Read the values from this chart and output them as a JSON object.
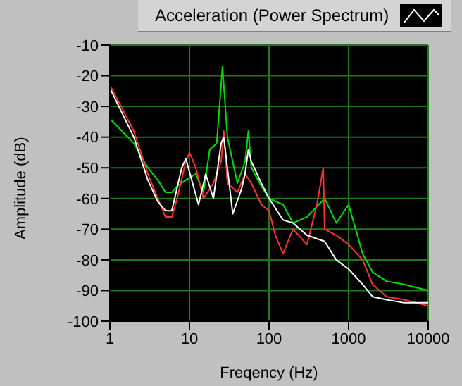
{
  "chart_data": {
    "type": "line",
    "title": "Acceleration (Power Spectrum)",
    "xlabel": "Freqency (Hz)",
    "ylabel": "Amplitude (dB)",
    "log": "x",
    "grid": true,
    "marker": "none",
    "xlim": [
      1,
      10000
    ],
    "xticks": [
      1,
      10,
      100,
      1000,
      10000
    ],
    "ylim": [
      -100,
      -10
    ],
    "yticks": [
      -100,
      -90,
      -80,
      -70,
      -60,
      -50,
      -40,
      -30,
      -20,
      -10
    ],
    "series": [
      {
        "color": "#00e000",
        "x": [
          1,
          2,
          3,
          4,
          5,
          6,
          7,
          9,
          12,
          15,
          18,
          22,
          26,
          30,
          40,
          50,
          55,
          60,
          80,
          100,
          150,
          200,
          300,
          500,
          700,
          1000,
          1500,
          2000,
          3000,
          5000,
          10000
        ],
        "values": [
          -34,
          -42,
          -50,
          -54,
          -58,
          -58,
          -56,
          -54,
          -52,
          -58,
          -44,
          -42,
          -17,
          -40,
          -55,
          -48,
          -38,
          -50,
          -56,
          -60,
          -62,
          -68,
          -66,
          -60,
          -68,
          -62,
          -78,
          -84,
          -87,
          -88,
          -90
        ]
      },
      {
        "color": "#ff3030",
        "x": [
          1,
          2,
          3,
          4,
          5,
          6,
          7,
          9,
          10,
          12,
          15,
          20,
          25,
          27,
          30,
          40,
          50,
          60,
          80,
          100,
          120,
          150,
          200,
          300,
          400,
          480,
          500,
          700,
          1000,
          1500,
          2000,
          3000,
          5000,
          10000
        ],
        "values": [
          -23,
          -38,
          -52,
          -60,
          -66,
          -66,
          -60,
          -48,
          -45,
          -50,
          -60,
          -55,
          -48,
          -38,
          -55,
          -58,
          -52,
          -55,
          -62,
          -64,
          -72,
          -78,
          -70,
          -75,
          -62,
          -50,
          -70,
          -72,
          -75,
          -80,
          -88,
          -92,
          -93,
          -95
        ]
      },
      {
        "color": "#ffffff",
        "x": [
          1,
          2,
          3,
          4,
          5,
          6,
          8,
          9,
          13,
          16,
          20,
          25,
          27,
          35,
          45,
          50,
          55,
          60,
          80,
          100,
          150,
          200,
          300,
          500,
          700,
          1000,
          1500,
          2000,
          3000,
          5000,
          10000
        ],
        "values": [
          -24,
          -40,
          -54,
          -61,
          -64,
          -64,
          -50,
          -47,
          -62,
          -52,
          -60,
          -42,
          -40,
          -65,
          -57,
          -52,
          -44,
          -48,
          -55,
          -60,
          -67,
          -68,
          -72,
          -74,
          -80,
          -83,
          -88,
          -92,
          -93,
          -94,
          -94
        ]
      }
    ]
  }
}
